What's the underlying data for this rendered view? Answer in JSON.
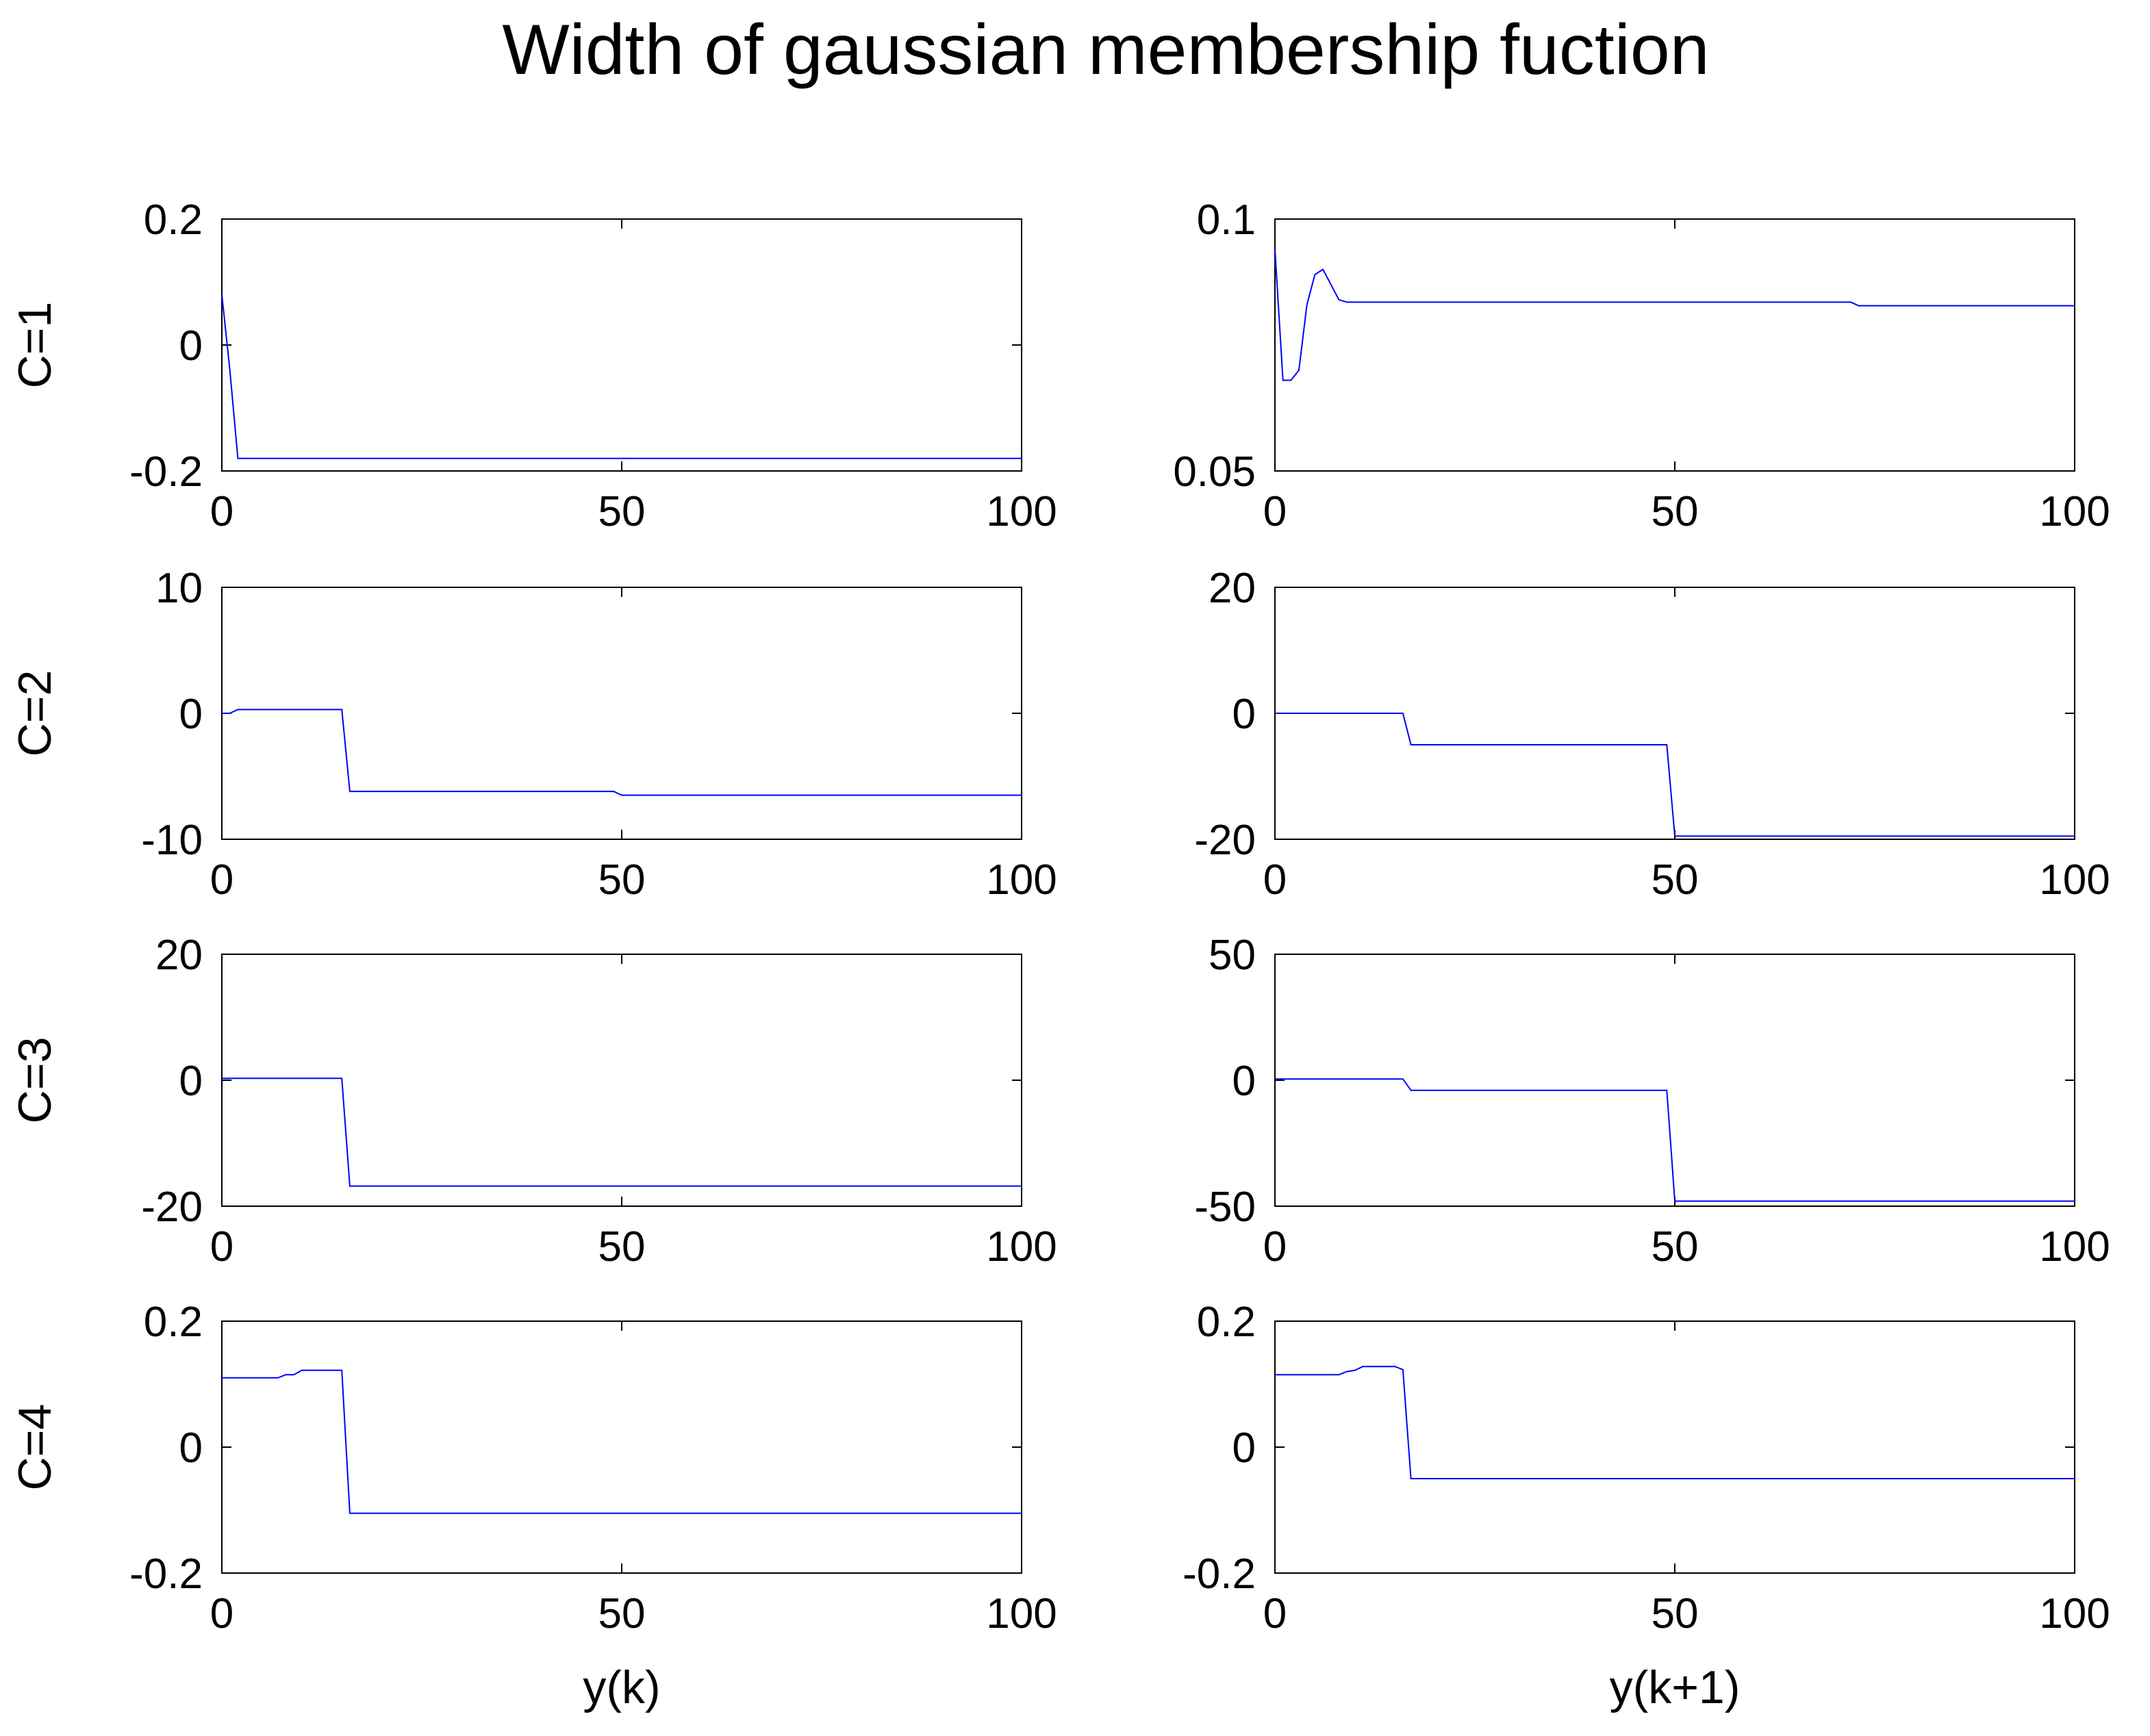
{
  "figure": {
    "title": "Width of gaussian membership fuction",
    "line_color": "#0000ff",
    "axis_color": "#000000"
  },
  "chart_data": [
    {
      "type": "line",
      "row": 1,
      "col": 1,
      "ylabel": "C=1",
      "xlabel": "",
      "xlim": [
        0,
        100
      ],
      "ylim": [
        -0.2,
        0.2
      ],
      "xticks": [
        0,
        50,
        100
      ],
      "xtick_labels": [
        "0",
        "50",
        "100"
      ],
      "yticks": [
        -0.2,
        0,
        0.2
      ],
      "ytick_labels": [
        "-0.2",
        "0",
        "0.2"
      ],
      "series": [
        {
          "x": [
            0,
            1,
            2,
            100
          ],
          "y": [
            0.08,
            -0.04,
            -0.18,
            -0.18
          ]
        }
      ]
    },
    {
      "type": "line",
      "row": 1,
      "col": 2,
      "ylabel": "",
      "xlabel": "",
      "xlim": [
        0,
        100
      ],
      "ylim": [
        0.05,
        0.1
      ],
      "xticks": [
        0,
        50,
        100
      ],
      "xtick_labels": [
        "0",
        "50",
        "100"
      ],
      "yticks": [
        0.05,
        0.1
      ],
      "ytick_labels": [
        "0.05",
        "0.1"
      ],
      "series": [
        {
          "x": [
            0,
            1,
            2,
            3,
            4,
            5,
            6,
            7,
            8,
            9,
            72,
            73,
            100
          ],
          "y": [
            0.094,
            0.068,
            0.068,
            0.07,
            0.083,
            0.089,
            0.09,
            0.087,
            0.084,
            0.0835,
            0.0835,
            0.0828,
            0.0828
          ]
        }
      ]
    },
    {
      "type": "line",
      "row": 2,
      "col": 1,
      "ylabel": "C=2",
      "xlabel": "",
      "xlim": [
        0,
        100
      ],
      "ylim": [
        -10,
        10
      ],
      "xticks": [
        0,
        50,
        100
      ],
      "xtick_labels": [
        "0",
        "50",
        "100"
      ],
      "yticks": [
        -10,
        0,
        10
      ],
      "ytick_labels": [
        "-10",
        "0",
        "10"
      ],
      "series": [
        {
          "x": [
            0,
            1,
            2,
            15,
            16,
            49,
            50,
            100
          ],
          "y": [
            0,
            0,
            0.3,
            0.3,
            -6.2,
            -6.2,
            -6.5,
            -6.5
          ]
        }
      ]
    },
    {
      "type": "line",
      "row": 2,
      "col": 2,
      "ylabel": "",
      "xlabel": "",
      "xlim": [
        0,
        100
      ],
      "ylim": [
        -20,
        20
      ],
      "xticks": [
        0,
        50,
        100
      ],
      "xtick_labels": [
        "0",
        "50",
        "100"
      ],
      "yticks": [
        -20,
        0,
        20
      ],
      "ytick_labels": [
        "-20",
        "0",
        "20"
      ],
      "series": [
        {
          "x": [
            0,
            16,
            17,
            49,
            50,
            100
          ],
          "y": [
            0,
            0,
            -5,
            -5,
            -19.5,
            -19.5
          ]
        }
      ]
    },
    {
      "type": "line",
      "row": 3,
      "col": 1,
      "ylabel": "C=3",
      "xlabel": "",
      "xlim": [
        0,
        100
      ],
      "ylim": [
        -20,
        20
      ],
      "xticks": [
        0,
        50,
        100
      ],
      "xtick_labels": [
        "0",
        "50",
        "100"
      ],
      "yticks": [
        -20,
        0,
        20
      ],
      "ytick_labels": [
        "-20",
        "0",
        "20"
      ],
      "series": [
        {
          "x": [
            0,
            15,
            16,
            100
          ],
          "y": [
            0.3,
            0.3,
            -16.8,
            -16.8
          ]
        }
      ]
    },
    {
      "type": "line",
      "row": 3,
      "col": 2,
      "ylabel": "",
      "xlabel": "",
      "xlim": [
        0,
        100
      ],
      "ylim": [
        -50,
        50
      ],
      "xticks": [
        0,
        50,
        100
      ],
      "xtick_labels": [
        "0",
        "50",
        "100"
      ],
      "yticks": [
        -50,
        0,
        50
      ],
      "ytick_labels": [
        "-50",
        "0",
        "50"
      ],
      "series": [
        {
          "x": [
            0,
            16,
            17,
            49,
            50,
            100
          ],
          "y": [
            0.5,
            0.5,
            -4,
            -4,
            -48,
            -48
          ]
        }
      ]
    },
    {
      "type": "line",
      "row": 4,
      "col": 1,
      "ylabel": "C=4",
      "xlabel": "y(k)",
      "xlim": [
        0,
        100
      ],
      "ylim": [
        -0.2,
        0.2
      ],
      "xticks": [
        0,
        50,
        100
      ],
      "xtick_labels": [
        "0",
        "50",
        "100"
      ],
      "yticks": [
        -0.2,
        0,
        0.2
      ],
      "ytick_labels": [
        "-0.2",
        "0",
        "0.2"
      ],
      "series": [
        {
          "x": [
            0,
            7,
            8,
            9,
            10,
            15,
            16,
            100
          ],
          "y": [
            0.11,
            0.11,
            0.115,
            0.115,
            0.122,
            0.122,
            -0.105,
            -0.105
          ]
        }
      ]
    },
    {
      "type": "line",
      "row": 4,
      "col": 2,
      "ylabel": "",
      "xlabel": "y(k+1)",
      "xlim": [
        0,
        100
      ],
      "ylim": [
        -0.2,
        0.2
      ],
      "xticks": [
        0,
        50,
        100
      ],
      "xtick_labels": [
        "0",
        "50",
        "100"
      ],
      "yticks": [
        -0.2,
        0,
        0.2
      ],
      "ytick_labels": [
        "-0.2",
        "0",
        "0.2"
      ],
      "series": [
        {
          "x": [
            0,
            8,
            9,
            10,
            11,
            15,
            16,
            17,
            100
          ],
          "y": [
            0.115,
            0.115,
            0.12,
            0.122,
            0.128,
            0.128,
            0.123,
            -0.05,
            -0.05
          ]
        }
      ]
    }
  ]
}
